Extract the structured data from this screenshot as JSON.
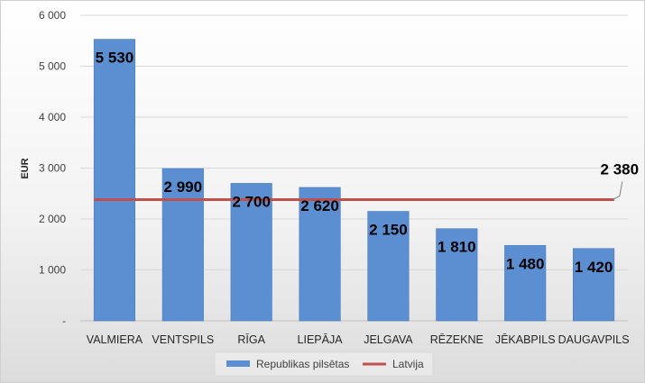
{
  "chart_data": {
    "type": "bar",
    "categories": [
      "VALMIERA",
      "VENTSPILS",
      "RĪGA",
      "LIEPĀJA",
      "JELGAVA",
      "RĒZEKNE",
      "JĒKABPILS",
      "DAUGAVPILS"
    ],
    "series": [
      {
        "name": "Republikas pilsētas",
        "type": "bar",
        "values": [
          5530,
          2990,
          2700,
          2620,
          2150,
          1810,
          1480,
          1420
        ],
        "value_labels": [
          "5 530",
          "2 990",
          "2 700",
          "2 620",
          "2 150",
          "1 810",
          "1 480",
          "1 420"
        ],
        "color": "#5b8fd1"
      },
      {
        "name": "Latvija",
        "type": "line",
        "value": 2380,
        "value_label": "2 380",
        "color": "#c0504d"
      }
    ],
    "ylabel": "EUR",
    "xlabel": "",
    "ylim": [
      0,
      6000
    ],
    "yticks": [
      0,
      1000,
      2000,
      3000,
      4000,
      5000,
      6000
    ],
    "ytick_labels": [
      "-",
      "1 000",
      "2 000",
      "3 000",
      "4 000",
      "5 000",
      "6 000"
    ],
    "grid": true,
    "legend_position": "bottom"
  }
}
